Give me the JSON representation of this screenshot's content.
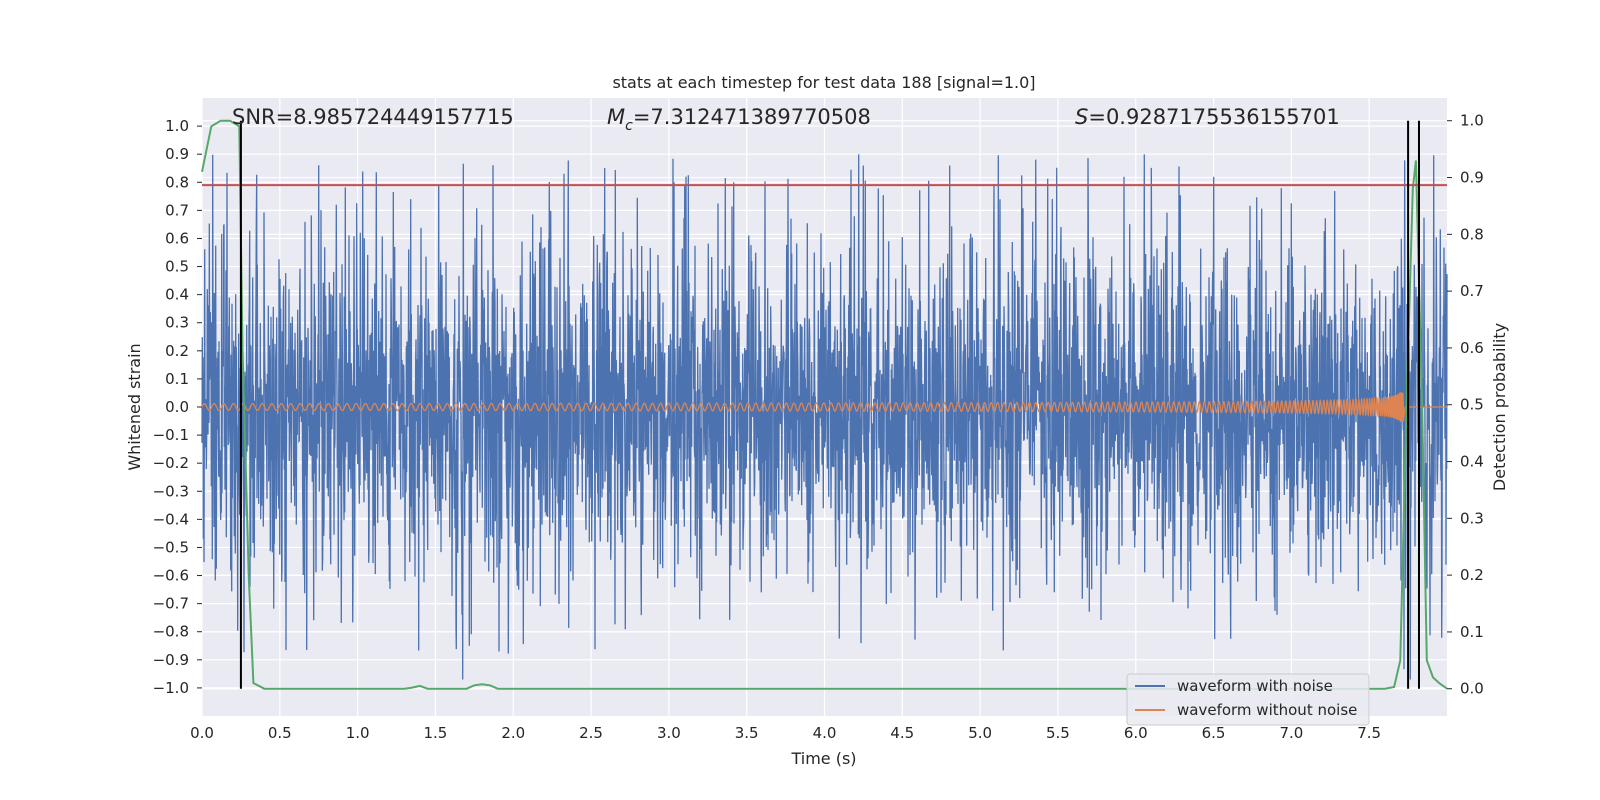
{
  "chart_data": {
    "type": "line",
    "title": "stats at each timestep for test data 188 [signal=1.0]",
    "xlabel": "Time (s)",
    "ylabel": "Whitened strain",
    "y2label": "Detection probability",
    "xlim": [
      0.0,
      8.0
    ],
    "ylim": [
      -1.1,
      1.1
    ],
    "y2lim": [
      -0.048,
      1.04
    ],
    "x_ticks": [
      "0.0",
      "0.5",
      "1.0",
      "1.5",
      "2.0",
      "2.5",
      "3.0",
      "3.5",
      "4.0",
      "4.5",
      "5.0",
      "5.5",
      "6.0",
      "6.5",
      "7.0",
      "7.5"
    ],
    "y_ticks": [
      "1.0",
      "0.9",
      "0.8",
      "0.7",
      "0.6",
      "0.5",
      "0.4",
      "0.3",
      "0.2",
      "0.1",
      "0.0",
      "−0.1",
      "−0.2",
      "−0.3",
      "−0.4",
      "−0.5",
      "−0.6",
      "−0.7",
      "−0.8",
      "−0.9",
      "−1.0"
    ],
    "y2_ticks": [
      "1.0",
      "0.9",
      "0.8",
      "0.7",
      "0.6",
      "0.5",
      "0.4",
      "0.3",
      "0.2",
      "0.1",
      "0.0"
    ],
    "annotations": {
      "snr": "SNR=8.985724449157715",
      "mc_symbol": "M",
      "mc_sub": "c",
      "mc_value": "=7.312471389770508",
      "s_symbol": "S",
      "s_value": "=0.9287175536155701"
    },
    "threshold": 0.79,
    "vlines": [
      0.25,
      7.75,
      7.82
    ],
    "legend": {
      "position": "lower-right",
      "entries": [
        "waveform with noise",
        "waveform without noise"
      ]
    },
    "series": [
      {
        "name": "waveform with noise",
        "color": "#4c72b0",
        "amplitude_envelope": {
          "x": [
            0.0,
            2.0,
            4.0,
            6.0,
            7.5,
            8.0
          ],
          "typical": [
            0.45,
            0.45,
            0.45,
            0.45,
            0.45,
            0.45
          ],
          "peak": [
            0.9,
            0.9,
            0.9,
            0.9,
            0.9,
            0.9
          ]
        }
      },
      {
        "name": "waveform without noise",
        "color": "#dd8452",
        "chirp": {
          "start_amplitude": 0.012,
          "peak_amplitude": 0.23,
          "merger_time": 7.7,
          "end_time": 7.72
        }
      },
      {
        "name": "detection probability",
        "color": "#55a868",
        "axis": "right",
        "x": [
          0.0,
          0.06,
          0.12,
          0.18,
          0.24,
          0.26,
          0.3,
          0.33,
          0.4,
          1.3,
          1.35,
          1.4,
          1.45,
          1.7,
          1.75,
          1.8,
          1.85,
          1.9,
          7.6,
          7.66,
          7.7,
          7.74,
          7.78,
          7.8,
          7.84,
          7.87,
          7.91,
          7.95,
          8.0
        ],
        "values": [
          0.91,
          0.99,
          1.0,
          1.0,
          0.99,
          0.6,
          0.2,
          0.01,
          0.0,
          0.0,
          0.002,
          0.005,
          0.0,
          0.0,
          0.006,
          0.008,
          0.006,
          0.0,
          0.0,
          0.003,
          0.05,
          0.5,
          0.88,
          0.93,
          0.5,
          0.05,
          0.02,
          0.01,
          0.0
        ]
      }
    ]
  }
}
